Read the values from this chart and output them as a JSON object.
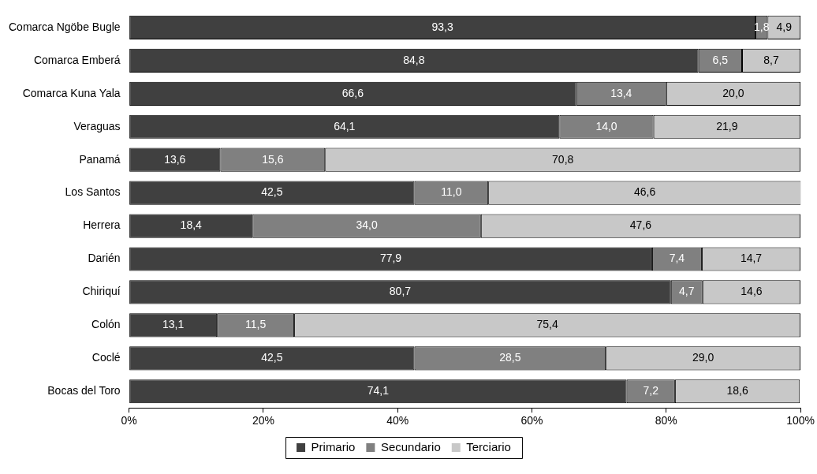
{
  "chart_data": {
    "type": "bar",
    "orientation": "horizontal",
    "stacked": true,
    "categories": [
      "Comarca Ngöbe Bugle",
      "Comarca Emberá",
      "Comarca Kuna Yala",
      "Veraguas",
      "Panamá",
      "Los Santos",
      "Herrera",
      "Darién",
      "Chiriquí",
      "Colón",
      "Coclé",
      "Bocas del Toro"
    ],
    "series": [
      {
        "name": "Primario",
        "color": "#404040",
        "values": [
          93.3,
          84.8,
          66.6,
          64.1,
          13.6,
          42.5,
          18.4,
          77.9,
          80.7,
          13.1,
          42.5,
          74.1
        ],
        "value_labels": [
          "93,3",
          "84,8",
          "66,6",
          "64,1",
          "13,6",
          "42,5",
          "18,4",
          "77,9",
          "80,7",
          "13,1",
          "42,5",
          "74,1"
        ]
      },
      {
        "name": "Secundario",
        "color": "#808080",
        "values": [
          1.8,
          6.5,
          13.4,
          14.0,
          15.6,
          11.0,
          34.0,
          7.4,
          4.7,
          11.5,
          28.5,
          7.2
        ],
        "value_labels": [
          "1,8",
          "6,5",
          "13,4",
          "14,0",
          "15,6",
          "11,0",
          "34,0",
          "7,4",
          "4,7",
          "11,5",
          "28,5",
          "7,2"
        ]
      },
      {
        "name": "Terciario",
        "color": "#c8c8c8",
        "values": [
          4.9,
          8.7,
          20.0,
          21.9,
          70.8,
          46.6,
          47.6,
          14.7,
          14.6,
          75.4,
          29.0,
          18.6
        ],
        "value_labels": [
          "4,9",
          "8,7",
          "20,0",
          "21,9",
          "70,8",
          "46,6",
          "47,6",
          "14,7",
          "14,6",
          "75,4",
          "29,0",
          "18,6"
        ]
      }
    ],
    "xlim": [
      0,
      100
    ],
    "xticks": [
      {
        "value": 0,
        "label": "0%"
      },
      {
        "value": 20,
        "label": "20%"
      },
      {
        "value": 40,
        "label": "40%"
      },
      {
        "value": 60,
        "label": "60%"
      },
      {
        "value": 80,
        "label": "80%"
      },
      {
        "value": 100,
        "label": "100%"
      }
    ],
    "grid": false,
    "legend": "bottom"
  }
}
